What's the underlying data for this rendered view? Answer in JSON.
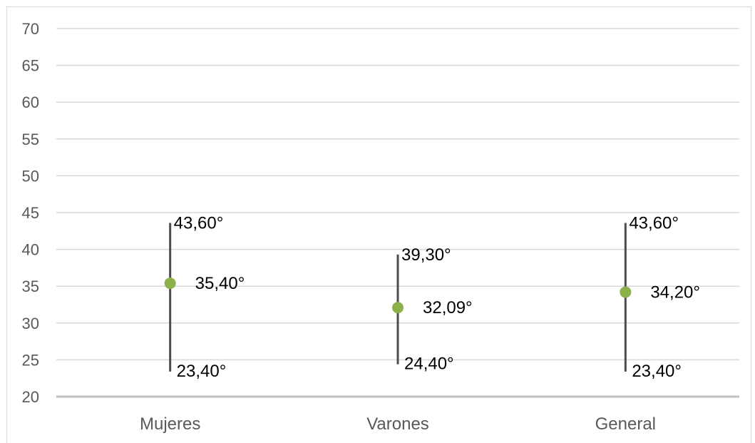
{
  "chart_data": {
    "type": "range",
    "categories": [
      "Mujeres",
      "Varones",
      "General"
    ],
    "series": [
      {
        "mean": [
          35.4,
          32.09,
          34.2
        ],
        "max": [
          43.6,
          39.3,
          43.6
        ],
        "min": [
          23.4,
          24.4,
          23.4
        ],
        "mean_labels": [
          "35,40°",
          "32,09°",
          "34,20°"
        ],
        "max_labels": [
          "43,60°",
          "39,30°",
          "43,60°"
        ],
        "min_labels": [
          "23,40°",
          "24,40°",
          "23,40°"
        ]
      }
    ],
    "ylim": [
      20,
      70
    ],
    "yticks": [
      20,
      25,
      30,
      35,
      40,
      45,
      50,
      55,
      60,
      65,
      70
    ],
    "title": "",
    "xlabel": "",
    "ylabel": "",
    "grid": true,
    "legend": "none",
    "colors": {
      "marker": "#8cb04a",
      "range_line": "#4d4d4d",
      "gridline": "#d9d9d9",
      "axis_line": "#bfbfbf",
      "tick_text": "#595959",
      "label_text": "#000000"
    }
  }
}
